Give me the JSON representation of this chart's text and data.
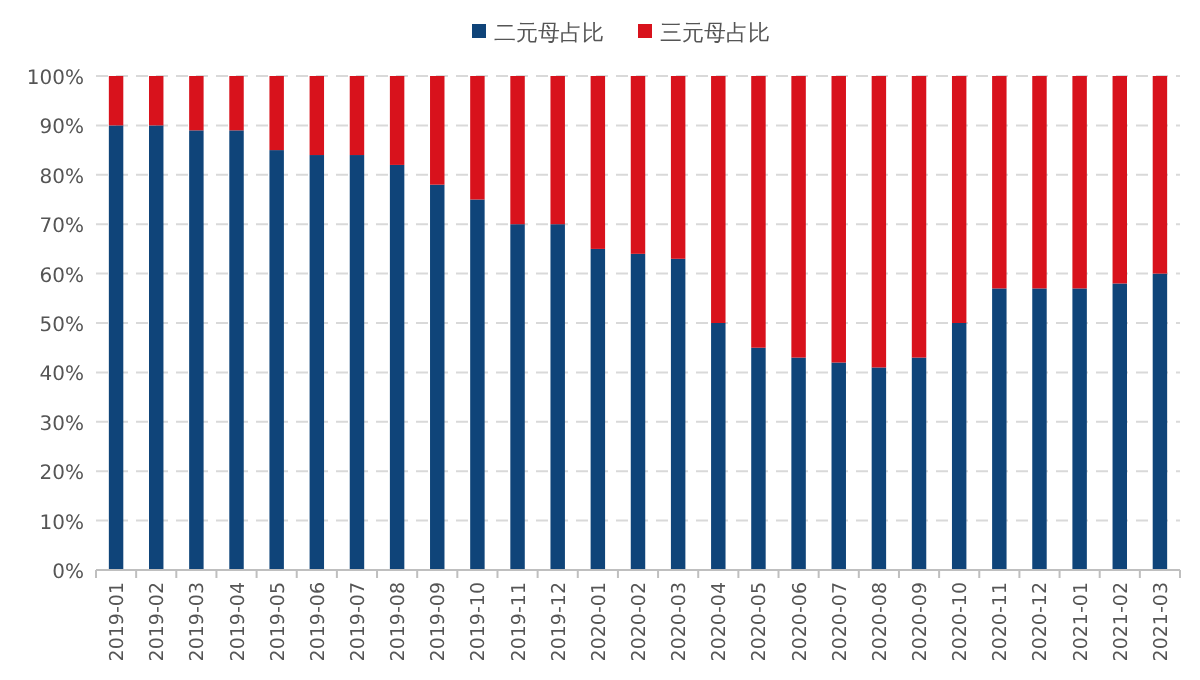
{
  "chart_data": {
    "type": "bar",
    "stacked": true,
    "legend": "top",
    "grid": "y",
    "categories": [
      "2019-01",
      "2019-02",
      "2019-03",
      "2019-04",
      "2019-05",
      "2019-06",
      "2019-07",
      "2019-08",
      "2019-09",
      "2019-10",
      "2019-11",
      "2019-12",
      "2020-01",
      "2020-02",
      "2020-03",
      "2020-04",
      "2020-05",
      "2020-06",
      "2020-07",
      "2020-08",
      "2020-09",
      "2020-10",
      "2020-11",
      "2020-12",
      "2021-01",
      "2021-02",
      "2021-03"
    ],
    "series": [
      {
        "name": "二元母占比",
        "color": "#0f4479",
        "values": [
          90,
          90,
          89,
          89,
          85,
          84,
          84,
          82,
          78,
          75,
          70,
          70,
          65,
          64,
          63,
          50,
          45,
          43,
          42,
          41,
          43,
          50,
          57,
          57,
          57,
          58,
          60
        ]
      },
      {
        "name": "三元母占比",
        "color": "#d8121c",
        "values": [
          10,
          10,
          11,
          11,
          15,
          16,
          16,
          18,
          22,
          25,
          30,
          30,
          35,
          36,
          37,
          50,
          55,
          57,
          58,
          59,
          57,
          50,
          43,
          43,
          43,
          42,
          40
        ]
      }
    ],
    "ylim": [
      0,
      100
    ],
    "yticks": [
      {
        "value": 0,
        "label": "0%"
      },
      {
        "value": 10,
        "label": "10%"
      },
      {
        "value": 20,
        "label": "20%"
      },
      {
        "value": 30,
        "label": "30%"
      },
      {
        "value": 40,
        "label": "40%"
      },
      {
        "value": 50,
        "label": "50%"
      },
      {
        "value": 60,
        "label": "60%"
      },
      {
        "value": 70,
        "label": "70%"
      },
      {
        "value": 80,
        "label": "80%"
      },
      {
        "value": 90,
        "label": "90%"
      },
      {
        "value": 100,
        "label": "100%"
      }
    ]
  }
}
